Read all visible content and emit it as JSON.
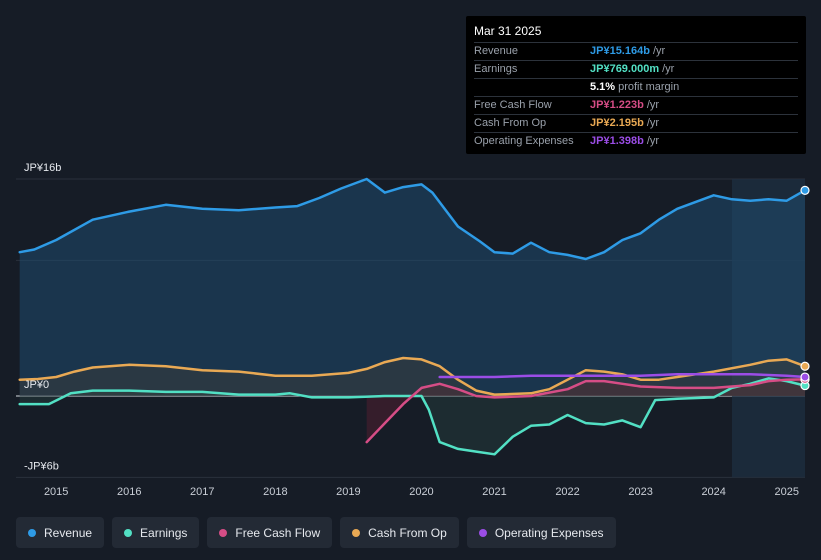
{
  "chart_data": {
    "type": "line",
    "title": "",
    "y_axis": {
      "unit_labels": [
        "JP¥16b",
        "JP¥0",
        "-JP¥6b"
      ],
      "ylim": [
        -6,
        16
      ]
    },
    "x_axis": {
      "tick_labels": [
        "2015",
        "2016",
        "2017",
        "2018",
        "2019",
        "2020",
        "2021",
        "2022",
        "2023",
        "2024",
        "2025"
      ],
      "xlim": [
        2014.45,
        2025.25
      ]
    },
    "forecast_shade_start": 2024.25,
    "series": [
      {
        "name": "Revenue",
        "color": "#2e9be6",
        "fill": true,
        "points": [
          [
            2014.5,
            10.6
          ],
          [
            2014.7,
            10.8
          ],
          [
            2015.0,
            11.5
          ],
          [
            2015.5,
            13.0
          ],
          [
            2016.0,
            13.6
          ],
          [
            2016.5,
            14.1
          ],
          [
            2017.0,
            13.8
          ],
          [
            2017.5,
            13.7
          ],
          [
            2018.0,
            13.9
          ],
          [
            2018.3,
            14.0
          ],
          [
            2018.6,
            14.6
          ],
          [
            2018.9,
            15.3
          ],
          [
            2019.25,
            16.0
          ],
          [
            2019.5,
            15.0
          ],
          [
            2019.75,
            15.4
          ],
          [
            2020.0,
            15.6
          ],
          [
            2020.15,
            15.0
          ],
          [
            2020.5,
            12.5
          ],
          [
            2020.8,
            11.4
          ],
          [
            2021.0,
            10.6
          ],
          [
            2021.25,
            10.5
          ],
          [
            2021.5,
            11.3
          ],
          [
            2021.75,
            10.6
          ],
          [
            2022.0,
            10.4
          ],
          [
            2022.25,
            10.1
          ],
          [
            2022.5,
            10.6
          ],
          [
            2022.75,
            11.5
          ],
          [
            2023.0,
            12.0
          ],
          [
            2023.25,
            13.0
          ],
          [
            2023.5,
            13.8
          ],
          [
            2023.75,
            14.3
          ],
          [
            2024.0,
            14.8
          ],
          [
            2024.25,
            14.5
          ],
          [
            2024.5,
            14.4
          ],
          [
            2024.75,
            14.5
          ],
          [
            2025.0,
            14.4
          ],
          [
            2025.25,
            15.164
          ]
        ]
      },
      {
        "name": "Earnings",
        "color": "#52e0c4",
        "fill": false,
        "points": [
          [
            2014.5,
            -0.6
          ],
          [
            2014.9,
            -0.6
          ],
          [
            2015.2,
            0.2
          ],
          [
            2015.5,
            0.4
          ],
          [
            2016.0,
            0.4
          ],
          [
            2016.5,
            0.3
          ],
          [
            2017.0,
            0.3
          ],
          [
            2017.5,
            0.1
          ],
          [
            2018.0,
            0.1
          ],
          [
            2018.2,
            0.2
          ],
          [
            2018.5,
            -0.1
          ],
          [
            2019.0,
            -0.1
          ],
          [
            2019.5,
            0.0
          ],
          [
            2019.75,
            0.0
          ],
          [
            2020.0,
            0.0
          ],
          [
            2020.1,
            -1.0
          ],
          [
            2020.25,
            -3.4
          ],
          [
            2020.5,
            -3.9
          ],
          [
            2020.75,
            -4.1
          ],
          [
            2021.0,
            -4.3
          ],
          [
            2021.25,
            -3.0
          ],
          [
            2021.5,
            -2.2
          ],
          [
            2021.75,
            -2.1
          ],
          [
            2022.0,
            -1.4
          ],
          [
            2022.25,
            -2.0
          ],
          [
            2022.5,
            -2.1
          ],
          [
            2022.75,
            -1.8
          ],
          [
            2023.0,
            -2.3
          ],
          [
            2023.2,
            -0.3
          ],
          [
            2023.5,
            -0.2
          ],
          [
            2024.0,
            -0.1
          ],
          [
            2024.25,
            0.6
          ],
          [
            2024.5,
            0.9
          ],
          [
            2024.75,
            1.3
          ],
          [
            2025.0,
            1.1
          ],
          [
            2025.25,
            0.769
          ]
        ]
      },
      {
        "name": "Free Cash Flow",
        "color": "#d64d86",
        "fill": false,
        "points": [
          [
            2019.25,
            -3.4
          ],
          [
            2019.5,
            -2.0
          ],
          [
            2019.75,
            -0.6
          ],
          [
            2020.0,
            0.6
          ],
          [
            2020.25,
            0.9
          ],
          [
            2020.5,
            0.5
          ],
          [
            2020.75,
            0.0
          ],
          [
            2021.0,
            -0.1
          ],
          [
            2021.5,
            0.0
          ],
          [
            2022.0,
            0.5
          ],
          [
            2022.25,
            1.1
          ],
          [
            2022.5,
            1.1
          ],
          [
            2022.75,
            0.9
          ],
          [
            2023.0,
            0.7
          ],
          [
            2023.5,
            0.6
          ],
          [
            2024.0,
            0.6
          ],
          [
            2024.5,
            0.8
          ],
          [
            2024.75,
            1.1
          ],
          [
            2025.0,
            1.2
          ],
          [
            2025.25,
            1.223
          ]
        ]
      },
      {
        "name": "Cash From Op",
        "color": "#e9a954",
        "fill": false,
        "points": [
          [
            2014.5,
            1.2
          ],
          [
            2014.75,
            1.25
          ],
          [
            2015.0,
            1.4
          ],
          [
            2015.25,
            1.8
          ],
          [
            2015.5,
            2.1
          ],
          [
            2016.0,
            2.3
          ],
          [
            2016.5,
            2.2
          ],
          [
            2017.0,
            1.9
          ],
          [
            2017.5,
            1.8
          ],
          [
            2018.0,
            1.5
          ],
          [
            2018.5,
            1.5
          ],
          [
            2019.0,
            1.7
          ],
          [
            2019.25,
            2.0
          ],
          [
            2019.5,
            2.5
          ],
          [
            2019.75,
            2.8
          ],
          [
            2020.0,
            2.7
          ],
          [
            2020.25,
            2.2
          ],
          [
            2020.5,
            1.2
          ],
          [
            2020.75,
            0.4
          ],
          [
            2021.0,
            0.1
          ],
          [
            2021.5,
            0.2
          ],
          [
            2021.75,
            0.5
          ],
          [
            2022.0,
            1.2
          ],
          [
            2022.25,
            1.9
          ],
          [
            2022.5,
            1.8
          ],
          [
            2022.75,
            1.6
          ],
          [
            2023.0,
            1.2
          ],
          [
            2023.25,
            1.2
          ],
          [
            2023.5,
            1.4
          ],
          [
            2023.75,
            1.6
          ],
          [
            2024.0,
            1.8
          ],
          [
            2024.5,
            2.3
          ],
          [
            2024.75,
            2.6
          ],
          [
            2025.0,
            2.7
          ],
          [
            2025.25,
            2.195
          ]
        ]
      },
      {
        "name": "Operating Expenses",
        "color": "#9b4de6",
        "fill": false,
        "points": [
          [
            2020.25,
            1.4
          ],
          [
            2020.5,
            1.4
          ],
          [
            2021.0,
            1.4
          ],
          [
            2021.5,
            1.5
          ],
          [
            2022.0,
            1.5
          ],
          [
            2022.5,
            1.5
          ],
          [
            2023.0,
            1.5
          ],
          [
            2023.5,
            1.6
          ],
          [
            2024.0,
            1.6
          ],
          [
            2024.5,
            1.6
          ],
          [
            2025.0,
            1.5
          ],
          [
            2025.25,
            1.398
          ]
        ]
      }
    ]
  },
  "tooltip": {
    "date": "Mar 31 2025",
    "rows": [
      {
        "label": "Revenue",
        "value": "JP¥15.164b",
        "unit": "/yr",
        "color": "#2e9be6"
      },
      {
        "label": "Earnings",
        "value": "JP¥769.000m",
        "unit": "/yr",
        "color": "#52e0c4"
      },
      {
        "label": "",
        "value": "5.1%",
        "unit": "profit margin",
        "color": "#ffffff"
      },
      {
        "label": "Free Cash Flow",
        "value": "JP¥1.223b",
        "unit": "/yr",
        "color": "#d64d86"
      },
      {
        "label": "Cash From Op",
        "value": "JP¥2.195b",
        "unit": "/yr",
        "color": "#e9a954"
      },
      {
        "label": "Operating Expenses",
        "value": "JP¥1.398b",
        "unit": "/yr",
        "color": "#9b4de6"
      }
    ]
  },
  "legend": [
    {
      "label": "Revenue",
      "color": "#2e9be6"
    },
    {
      "label": "Earnings",
      "color": "#52e0c4"
    },
    {
      "label": "Free Cash Flow",
      "color": "#d64d86"
    },
    {
      "label": "Cash From Op",
      "color": "#e9a954"
    },
    {
      "label": "Operating Expenses",
      "color": "#9b4de6"
    }
  ]
}
